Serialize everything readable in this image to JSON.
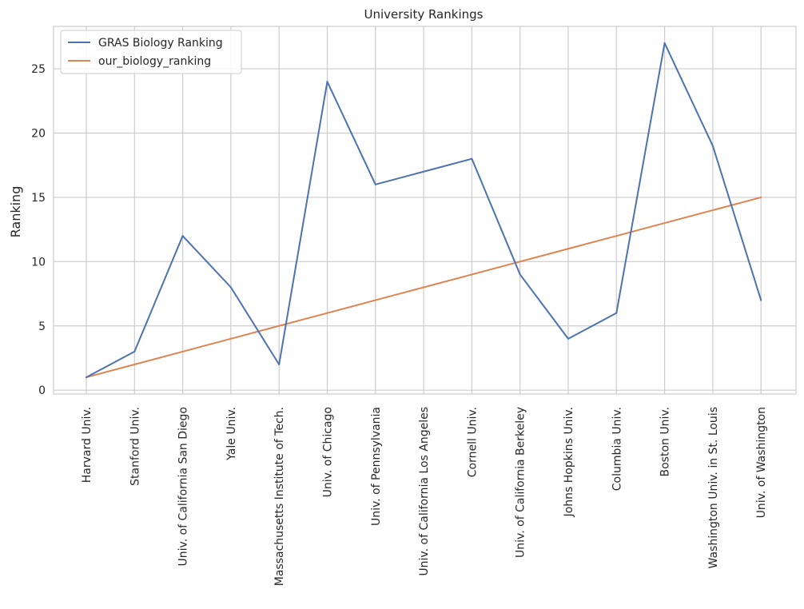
{
  "chart_data": {
    "type": "line",
    "title": "University Rankings",
    "xlabel": "",
    "ylabel": "Ranking",
    "categories": [
      "Harvard Univ.",
      "Stanford Univ.",
      "Univ. of California San Diego",
      "Yale Univ.",
      "Massachusetts Institute of Tech.",
      "Univ. of Chicago",
      "Univ. of Pennsylvania",
      "Univ. of California Los Angeles",
      "Cornell Univ.",
      "Univ. of California Berkeley",
      "Johns Hopkins Univ.",
      "Columbia Univ.",
      "Boston Univ.",
      "Washington Univ. in St. Louis",
      "Univ. of Washington"
    ],
    "series": [
      {
        "name": "GRAS Biology Ranking",
        "color": "#4c72b0",
        "values": [
          1,
          3,
          12,
          8,
          2,
          24,
          16,
          17,
          18,
          9,
          4,
          6,
          27,
          19,
          7
        ]
      },
      {
        "name": "our_biology_ranking",
        "color": "#dd8452",
        "values": [
          1,
          2,
          3,
          4,
          5,
          6,
          7,
          8,
          9,
          10,
          11,
          12,
          13,
          14,
          15
        ]
      }
    ],
    "ylim": [
      -0.3,
      28.3
    ],
    "yticks": [
      "0",
      "5",
      "10",
      "15",
      "20",
      "25"
    ],
    "grid": true,
    "legend_position": "top-left"
  }
}
